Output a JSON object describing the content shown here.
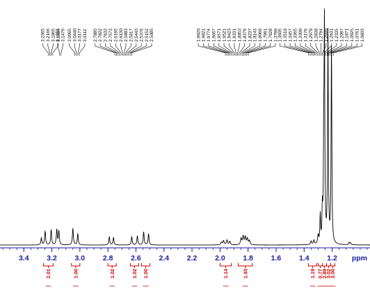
{
  "chart_data": {
    "type": "line",
    "x_reversed": true,
    "xlim": [
      3.57,
      0.93
    ],
    "xlabel": "ppm",
    "grid": false,
    "x_ticks": [
      {
        "value": 3.4,
        "label": "3.4"
      },
      {
        "value": 3.2,
        "label": "3.2"
      },
      {
        "value": 3.0,
        "label": "3.0"
      },
      {
        "value": 2.8,
        "label": "2.8"
      },
      {
        "value": 2.6,
        "label": "2.6"
      },
      {
        "value": 2.4,
        "label": "2.4"
      },
      {
        "value": 2.2,
        "label": "2.2"
      },
      {
        "value": 2.0,
        "label": "2.0"
      },
      {
        "value": 1.8,
        "label": "1.8"
      },
      {
        "value": 1.6,
        "label": "1.6"
      },
      {
        "value": 1.4,
        "label": "1.4"
      },
      {
        "value": 1.2,
        "label": "1.2"
      }
    ],
    "peak_groups": [
      {
        "center": 3.21,
        "labels": [
          "3.2365",
          "3.2166",
          "3.1865",
          "3.1684"
        ]
      },
      {
        "center": 3.14,
        "labels": [
          "3.1555",
          "3.1476"
        ]
      },
      {
        "center": 3.02,
        "labels": [
          "3.0965",
          "3.0440",
          "3.0177",
          "3.0112"
        ]
      },
      {
        "center": 2.69,
        "labels": [
          "2.7885",
          "2.7822",
          "2.7632",
          "2.7573",
          "2.6195",
          "2.6130",
          "2.5883",
          "2.5817",
          "2.5443",
          "2.5376",
          "2.5152",
          "2.5085"
        ]
      },
      {
        "center": 1.88,
        "labels": [
          "1.9920",
          "1.9821",
          "1.9774",
          "1.9667",
          "1.9571",
          "1.9521",
          "1.9423",
          "1.9331",
          "1.8853",
          "1.8379",
          "1.8237",
          "1.8143",
          "1.8069",
          "1.7991",
          "1.7928",
          "1.3799"
        ]
      },
      {
        "center": 1.28,
        "labels": [
          "1.3605",
          "1.3510",
          "1.3457",
          "1.3365",
          "1.3309",
          "1.3176",
          "1.2979",
          "1.2838",
          "1.2794",
          "1.2699",
          "1.2631",
          "1.2335",
          "1.2097",
          "1.1871",
          "1.0925",
          "1.0761",
          "1.0603"
        ]
      }
    ],
    "spectrum_peaks": [
      {
        "x": 3.275,
        "y": 10,
        "w": 0.004
      },
      {
        "x": 3.248,
        "y": 20,
        "w": 0.004
      },
      {
        "x": 3.205,
        "y": 22,
        "w": 0.004
      },
      {
        "x": 3.165,
        "y": 22,
        "w": 0.004
      },
      {
        "x": 3.15,
        "y": 20,
        "w": 0.004
      },
      {
        "x": 3.05,
        "y": 24,
        "w": 0.004
      },
      {
        "x": 3.015,
        "y": 16,
        "w": 0.004
      },
      {
        "x": 2.79,
        "y": 12,
        "w": 0.004
      },
      {
        "x": 2.76,
        "y": 11,
        "w": 0.004
      },
      {
        "x": 2.63,
        "y": 12,
        "w": 0.004
      },
      {
        "x": 2.59,
        "y": 13,
        "w": 0.004
      },
      {
        "x": 2.545,
        "y": 19,
        "w": 0.004
      },
      {
        "x": 2.51,
        "y": 16,
        "w": 0.004
      },
      {
        "x": 1.99,
        "y": 4,
        "w": 0.005
      },
      {
        "x": 1.975,
        "y": 6,
        "w": 0.005
      },
      {
        "x": 1.95,
        "y": 7,
        "w": 0.005
      },
      {
        "x": 1.93,
        "y": 5,
        "w": 0.005
      },
      {
        "x": 1.85,
        "y": 9,
        "w": 0.005
      },
      {
        "x": 1.835,
        "y": 12,
        "w": 0.005
      },
      {
        "x": 1.82,
        "y": 11,
        "w": 0.005
      },
      {
        "x": 1.805,
        "y": 9,
        "w": 0.005
      },
      {
        "x": 1.79,
        "y": 6,
        "w": 0.005
      },
      {
        "x": 1.35,
        "y": 5,
        "w": 0.004
      },
      {
        "x": 1.33,
        "y": 6,
        "w": 0.004
      },
      {
        "x": 1.3,
        "y": 12,
        "w": 0.004
      },
      {
        "x": 1.285,
        "y": 40,
        "w": 0.003
      },
      {
        "x": 1.27,
        "y": 45,
        "w": 0.003
      },
      {
        "x": 1.26,
        "y": 120,
        "w": 0.003
      },
      {
        "x": 1.255,
        "y": 300,
        "w": 0.003
      },
      {
        "x": 1.23,
        "y": 305,
        "w": 0.003
      },
      {
        "x": 1.205,
        "y": 290,
        "w": 0.003
      },
      {
        "x": 1.08,
        "y": 3,
        "w": 0.004
      },
      {
        "x": 1.07,
        "y": 3,
        "w": 0.004
      }
    ],
    "integrals": [
      {
        "from": 3.26,
        "to": 3.19,
        "value": "2.01"
      },
      {
        "from": 3.06,
        "to": 3.0,
        "value": "1.00"
      },
      {
        "from": 2.8,
        "to": 2.74,
        "value": "1.02"
      },
      {
        "from": 2.64,
        "to": 2.58,
        "value": "1.02"
      },
      {
        "from": 2.56,
        "to": 2.5,
        "value": "1.00"
      },
      {
        "from": 2.0,
        "to": 1.92,
        "value": "1.14"
      },
      {
        "from": 1.87,
        "to": 1.77,
        "value": "1.93"
      },
      {
        "from": 1.37,
        "to": 1.31,
        "value": "1.19"
      },
      {
        "from": 1.3,
        "to": 1.27,
        "value": "0.77"
      },
      {
        "from": 1.27,
        "to": 1.24,
        "value": "2.89"
      },
      {
        "from": 1.24,
        "to": 1.21,
        "value": "3.02"
      },
      {
        "from": 1.21,
        "to": 1.18,
        "value": "3.00"
      }
    ]
  }
}
